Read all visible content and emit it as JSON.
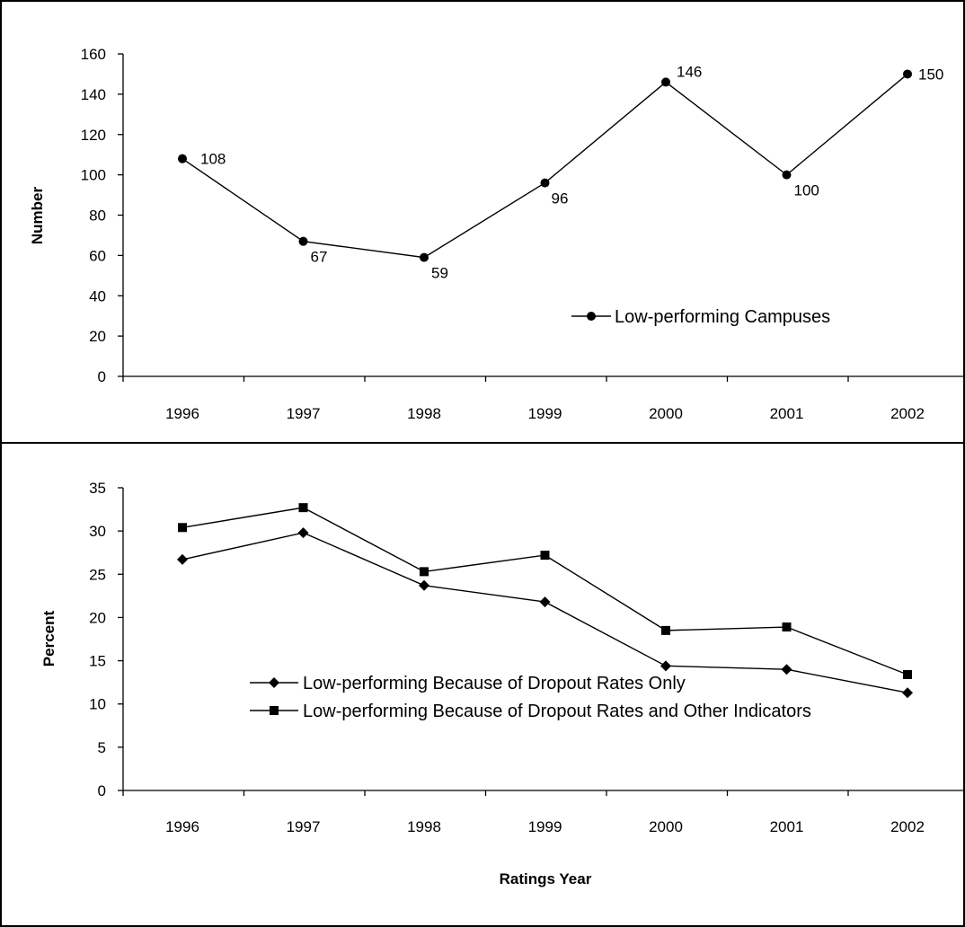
{
  "chart_data": [
    {
      "type": "line",
      "title": "",
      "xlabel": "",
      "ylabel": "Number",
      "categories": [
        "1996",
        "1997",
        "1998",
        "1999",
        "2000",
        "2001",
        "2002"
      ],
      "ylim": [
        0,
        160
      ],
      "yticks": [
        "0",
        "20",
        "40",
        "60",
        "80",
        "100",
        "120",
        "140",
        "160"
      ],
      "grid": false,
      "legend_position": "bottom-right",
      "series": [
        {
          "name": "Low-performing Campuses",
          "marker": "circle",
          "values": [
            108,
            67,
            59,
            96,
            146,
            100,
            150
          ],
          "labels": [
            "108",
            "67",
            "59",
            "96",
            "146",
            "100",
            "150"
          ]
        }
      ]
    },
    {
      "type": "line",
      "title": "",
      "xlabel": "Ratings Year",
      "ylabel": "Percent",
      "categories": [
        "1996",
        "1997",
        "1998",
        "1999",
        "2000",
        "2001",
        "2002"
      ],
      "ylim": [
        0,
        35
      ],
      "yticks": [
        "0",
        "5",
        "10",
        "15",
        "20",
        "25",
        "30",
        "35"
      ],
      "grid": false,
      "legend_position": "bottom-left",
      "series": [
        {
          "name": "Low-performing Because of Dropout Rates Only",
          "marker": "diamond",
          "values": [
            26.7,
            29.8,
            23.7,
            21.8,
            14.4,
            14.0,
            11.3
          ]
        },
        {
          "name": "Low-performing Because of Dropout Rates and Other Indicators",
          "marker": "square",
          "values": [
            30.4,
            32.7,
            25.3,
            27.2,
            18.5,
            18.9,
            13.4
          ]
        }
      ]
    }
  ]
}
